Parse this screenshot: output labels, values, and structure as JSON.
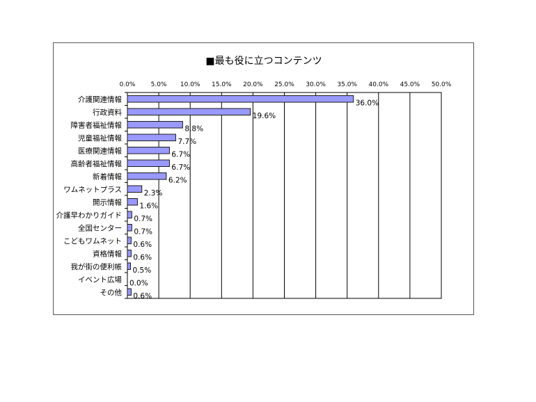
{
  "chart_data": {
    "type": "bar",
    "orientation": "horizontal",
    "title": "■最も役に立つコンテンツ",
    "categories": [
      "介護関連情報",
      "行政資料",
      "障害者福祉情報",
      "児童福祉情報",
      "医療関連情報",
      "高齢者福祉情報",
      "新着情報",
      "ワムネットプラス",
      "開示情報",
      "介護早わかりガイド",
      "全国センター",
      "こどもワムネット",
      "資格情報",
      "我が街の便利帳",
      "イベント広場",
      "その他"
    ],
    "values": [
      36.0,
      19.6,
      8.8,
      7.7,
      6.7,
      6.7,
      6.2,
      2.3,
      1.6,
      0.7,
      0.7,
      0.6,
      0.6,
      0.5,
      0.0,
      0.6
    ],
    "value_labels": [
      "36.0%",
      "19.6%",
      "8.8%",
      "7.7%",
      "6.7%",
      "6.7%",
      "6.2%",
      "2.3%",
      "1.6%",
      "0.7%",
      "0.7%",
      "0.6%",
      "0.6%",
      "0.5%",
      "0.0%",
      "0.6%"
    ],
    "x_ticks": [
      "0.0%",
      "5.0%",
      "10.0%",
      "15.0%",
      "20.0%",
      "25.0%",
      "30.0%",
      "35.0%",
      "40.0%",
      "45.0%",
      "50.0%"
    ],
    "xlim": [
      0,
      50
    ],
    "x_axis_position": "top",
    "grid": true,
    "legend": false,
    "colors": {
      "bar_fill": "#9999ff",
      "bar_stroke": "#1a1a1a",
      "grid": "#000000"
    }
  }
}
